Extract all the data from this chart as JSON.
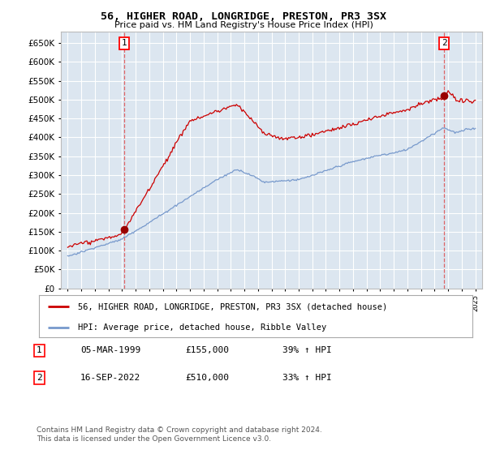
{
  "title": "56, HIGHER ROAD, LONGRIDGE, PRESTON, PR3 3SX",
  "subtitle": "Price paid vs. HM Land Registry's House Price Index (HPI)",
  "background_color": "#dce6f0",
  "plot_bg_color": "#dce6f0",
  "red_label": "56, HIGHER ROAD, LONGRIDGE, PRESTON, PR3 3SX (detached house)",
  "blue_label": "HPI: Average price, detached house, Ribble Valley",
  "footnote": "Contains HM Land Registry data © Crown copyright and database right 2024.\nThis data is licensed under the Open Government Licence v3.0.",
  "sale1_date": "05-MAR-1999",
  "sale1_price": "£155,000",
  "sale1_hpi": "39% ↑ HPI",
  "sale2_date": "16-SEP-2022",
  "sale2_price": "£510,000",
  "sale2_hpi": "33% ↑ HPI",
  "ylim": [
    0,
    680000
  ],
  "yticks": [
    0,
    50000,
    100000,
    150000,
    200000,
    250000,
    300000,
    350000,
    400000,
    450000,
    500000,
    550000,
    600000,
    650000
  ],
  "xlim_start": 1994.5,
  "xlim_end": 2025.5,
  "sale1_x": 1999.17,
  "sale1_y": 155000,
  "sale2_x": 2022.71,
  "sale2_y": 510000,
  "red_color": "#cc0000",
  "blue_color": "#7799cc",
  "marker_color": "#990000",
  "grid_color": "white",
  "vline_color": "#dd4444"
}
